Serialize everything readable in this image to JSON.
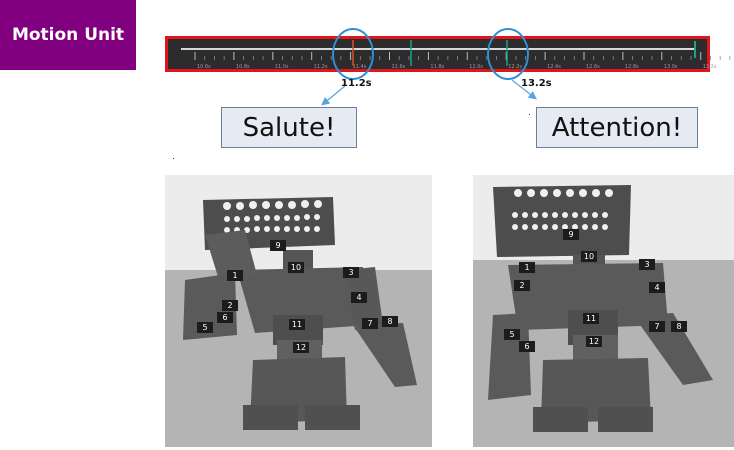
{
  "tag": "Motion Unit",
  "timeline": {
    "ticks": [
      "10.6s",
      "10.8s",
      "11.0s",
      "11.2s",
      "11.4s",
      "11.6s",
      "11.8s",
      "12.0s",
      "12.2s",
      "12.4s",
      "12.6s",
      "12.8s",
      "13.0s",
      "13.2s"
    ],
    "markers": [
      {
        "time": "11.2s",
        "color": "#d9541e"
      },
      {
        "time": "13.2s",
        "color": "#1aa28c"
      }
    ],
    "mid_marker_color": "#1aa28c",
    "highlight_color": "#e0161b",
    "circle_color": "#2f8fd8"
  },
  "callouts": [
    {
      "time": "11.2s",
      "action": "Salute!"
    },
    {
      "time": "13.2s",
      "action": "Attention!"
    }
  ],
  "robots": [
    {
      "pose": "salute",
      "labels": [
        "1",
        "2",
        "3",
        "4",
        "5",
        "6",
        "7",
        "8",
        "9",
        "10",
        "11",
        "12"
      ]
    },
    {
      "pose": "attention",
      "labels": [
        "1",
        "2",
        "3",
        "4",
        "5",
        "6",
        "7",
        "8",
        "9",
        "10",
        "11",
        "12"
      ]
    }
  ]
}
